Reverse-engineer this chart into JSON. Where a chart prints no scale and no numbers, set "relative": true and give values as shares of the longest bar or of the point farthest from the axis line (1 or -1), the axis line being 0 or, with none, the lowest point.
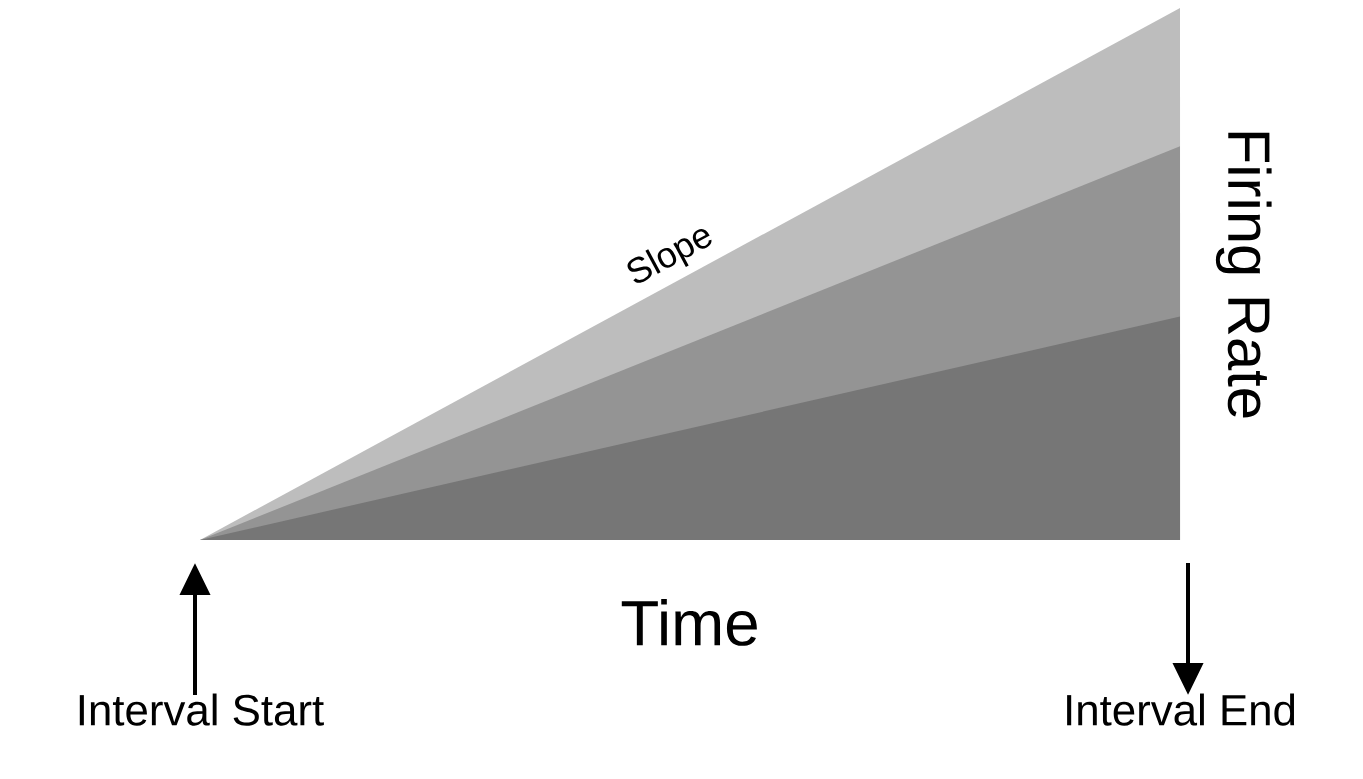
{
  "chart_data": {
    "type": "area",
    "relative": true,
    "xlabel": "Time",
    "ylabel": "Firing Rate",
    "annotations": [
      "Slope"
    ],
    "categories": [
      "Interval Start",
      "Interval End"
    ],
    "series": [
      {
        "color": "#bdbdbd",
        "values": [
          0,
          1
        ]
      },
      {
        "color": "#949494",
        "values": [
          0,
          0.74
        ]
      },
      {
        "color": "#767676",
        "values": [
          0,
          0.42
        ]
      }
    ]
  }
}
